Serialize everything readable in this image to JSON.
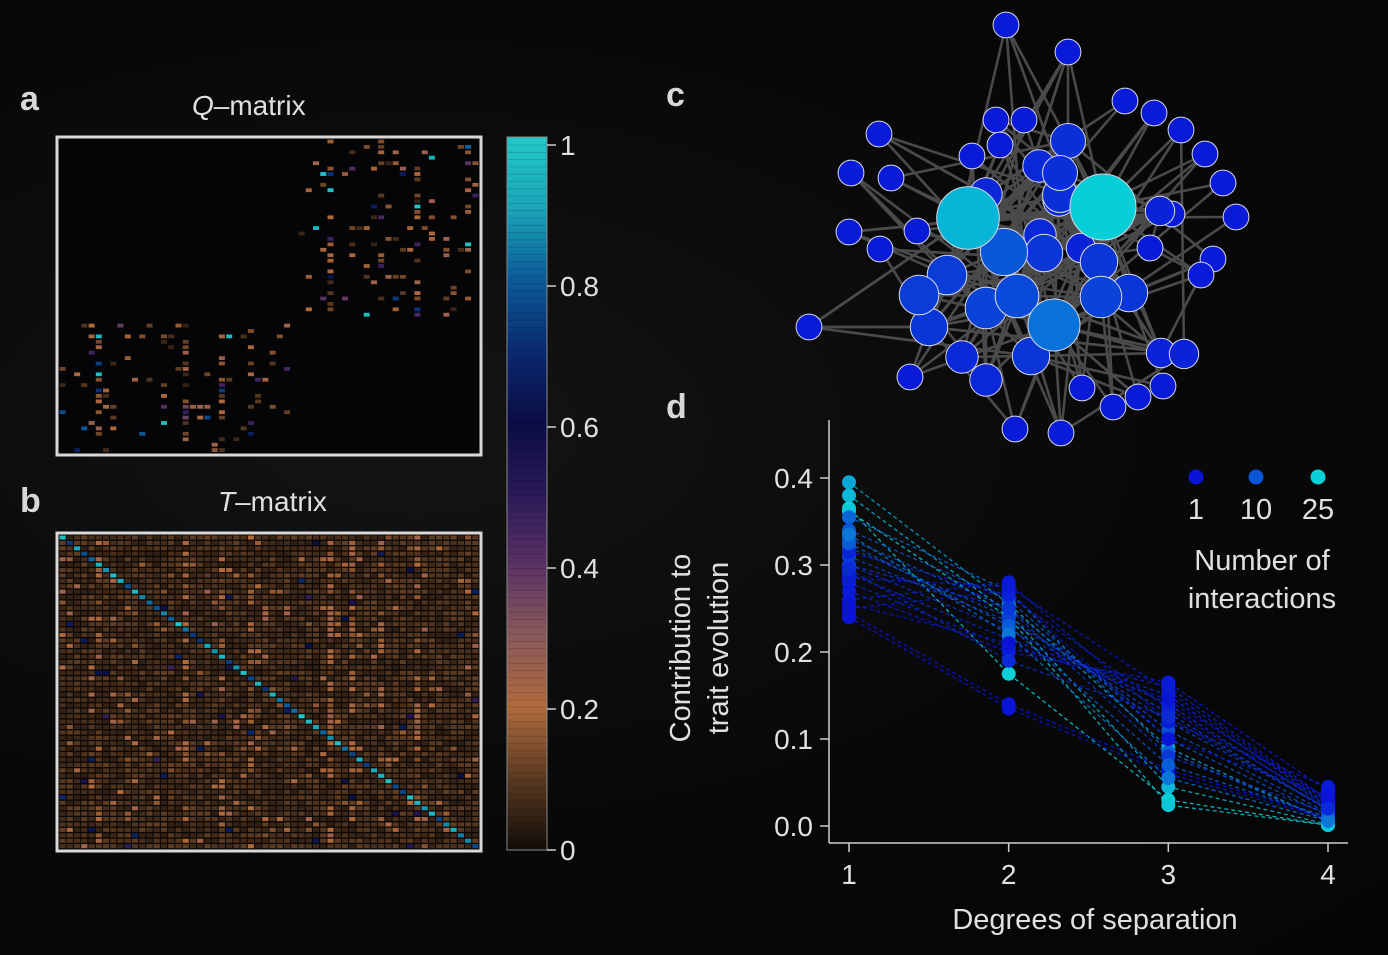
{
  "panels": {
    "a": {
      "label": "a",
      "title_var": "Q",
      "title_rest": "–matrix"
    },
    "b": {
      "label": "b",
      "title_var": "T",
      "title_rest": "–matrix"
    },
    "c": {
      "label": "c"
    },
    "d": {
      "label": "d"
    }
  },
  "colorbar": {
    "ticks": [
      "1",
      "0.8",
      "0.6",
      "0.4",
      "0.2",
      "0"
    ],
    "tick_values": [
      1,
      0.8,
      0.6,
      0.4,
      0.2,
      0
    ],
    "range": [
      0,
      1
    ],
    "colors": [
      "#120c08",
      "#5a3a22",
      "#b06a3c",
      "#8a5a5a",
      "#5a3265",
      "#2a1a58",
      "#0a0c45",
      "#0a2a70",
      "#0c5a98",
      "#1aa6b8",
      "#22c8c8"
    ]
  },
  "chart_data": [
    {
      "type": "heatmap",
      "title": "Q–matrix",
      "description": "Sparse interaction matrix with two block communities (top-right and bottom-left); values 0–1",
      "value_range": [
        0,
        1
      ],
      "size": [
        58,
        44
      ]
    },
    {
      "type": "heatmap",
      "title": "T–matrix",
      "description": "Dense matrix with bright diagonal (values ~0.7–1) and low off-diagonal values (~0–0.25)",
      "value_range": [
        0,
        1
      ],
      "size": [
        58,
        58
      ]
    },
    {
      "type": "network",
      "title": "",
      "description": "Interaction network; node size and color scale with number of interactions (1 dark blue → 25 cyan)",
      "hub_nodes": [
        {
          "interactions": 25,
          "color": "#05ccd4"
        },
        {
          "interactions": 22,
          "color": "#08b6d4"
        },
        {
          "interactions": 14,
          "color": "#0a88d0"
        },
        {
          "interactions": 11,
          "color": "#0a74d4"
        }
      ]
    },
    {
      "type": "line",
      "title": "",
      "xlabel": "Degrees of separation",
      "ylabel_lines": [
        "Contribution to",
        "trait evolution"
      ],
      "x": [
        1,
        2,
        3,
        4
      ],
      "x_ticks": [
        "1",
        "2",
        "3",
        "4"
      ],
      "y_ticks": [
        "0.0",
        "0.1",
        "0.2",
        "0.3",
        "0.4"
      ],
      "y_tick_values": [
        0.0,
        0.1,
        0.2,
        0.3,
        0.4
      ],
      "ylim": [
        -0.015,
        0.47
      ],
      "xlim": [
        0.88,
        4.12
      ],
      "line_style": "dashed",
      "legend": {
        "title_lines": [
          "Number of",
          "interactions"
        ],
        "placement": "top-right",
        "entries": [
          {
            "label": "1",
            "color": "#0a14d8"
          },
          {
            "label": "10",
            "color": "#0a55d8"
          },
          {
            "label": "25",
            "color": "#0ad0d8"
          }
        ]
      },
      "series": [
        {
          "interactions": 20,
          "values": [
            0.395,
            0.255,
            0.09,
            0.005
          ]
        },
        {
          "interactions": 22,
          "values": [
            0.38,
            0.245,
            0.045,
            0.002
          ]
        },
        {
          "interactions": 25,
          "values": [
            0.365,
            0.175,
            0.03,
            0.001
          ]
        },
        {
          "interactions": 24,
          "values": [
            0.362,
            0.24,
            0.024,
            0.001
          ]
        },
        {
          "interactions": 12,
          "values": [
            0.355,
            0.27,
            0.085,
            0.006
          ]
        },
        {
          "interactions": 10,
          "values": [
            0.34,
            0.26,
            0.1,
            0.012
          ]
        },
        {
          "interactions": 9,
          "values": [
            0.33,
            0.25,
            0.11,
            0.015
          ]
        },
        {
          "interactions": 8,
          "values": [
            0.32,
            0.24,
            0.12,
            0.02
          ]
        },
        {
          "interactions": 7,
          "values": [
            0.31,
            0.235,
            0.13,
            0.018
          ]
        },
        {
          "interactions": 5,
          "values": [
            0.3,
            0.225,
            0.14,
            0.022
          ]
        },
        {
          "interactions": 4,
          "values": [
            0.29,
            0.215,
            0.15,
            0.025
          ]
        },
        {
          "interactions": 3,
          "values": [
            0.28,
            0.205,
            0.16,
            0.03
          ]
        },
        {
          "interactions": 2,
          "values": [
            0.27,
            0.2,
            0.165,
            0.04
          ]
        },
        {
          "interactions": 2,
          "values": [
            0.26,
            0.28,
            0.12,
            0.045
          ]
        },
        {
          "interactions": 1,
          "values": [
            0.25,
            0.27,
            0.1,
            0.035
          ]
        },
        {
          "interactions": 1,
          "values": [
            0.245,
            0.14,
            0.065,
            0.01
          ]
        },
        {
          "interactions": 1,
          "values": [
            0.24,
            0.135,
            0.06,
            0.008
          ]
        },
        {
          "interactions": 3,
          "values": [
            0.315,
            0.265,
            0.135,
            0.025
          ]
        },
        {
          "interactions": 6,
          "values": [
            0.3,
            0.25,
            0.08,
            0.015
          ]
        },
        {
          "interactions": 11,
          "values": [
            0.325,
            0.23,
            0.07,
            0.01
          ]
        },
        {
          "interactions": 14,
          "values": [
            0.335,
            0.22,
            0.055,
            0.006
          ]
        },
        {
          "interactions": 2,
          "values": [
            0.285,
            0.275,
            0.155,
            0.028
          ]
        },
        {
          "interactions": 1,
          "values": [
            0.255,
            0.21,
            0.145,
            0.03
          ]
        },
        {
          "interactions": 4,
          "values": [
            0.295,
            0.19,
            0.125,
            0.02
          ]
        }
      ]
    }
  ]
}
